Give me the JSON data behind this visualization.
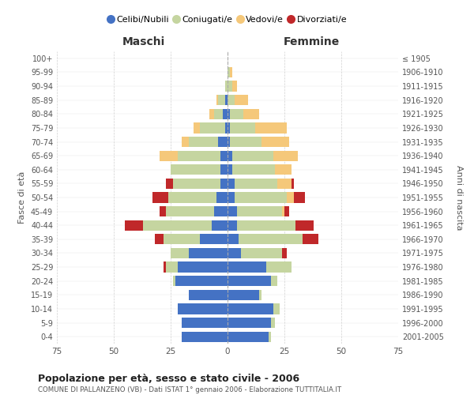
{
  "age_groups": [
    "0-4",
    "5-9",
    "10-14",
    "15-19",
    "20-24",
    "25-29",
    "30-34",
    "35-39",
    "40-44",
    "45-49",
    "50-54",
    "55-59",
    "60-64",
    "65-69",
    "70-74",
    "75-79",
    "80-84",
    "85-89",
    "90-94",
    "95-99",
    "100+"
  ],
  "birth_years": [
    "2001-2005",
    "1996-2000",
    "1991-1995",
    "1986-1990",
    "1981-1985",
    "1976-1980",
    "1971-1975",
    "1966-1970",
    "1961-1965",
    "1956-1960",
    "1951-1955",
    "1946-1950",
    "1941-1945",
    "1936-1940",
    "1931-1935",
    "1926-1930",
    "1921-1925",
    "1916-1920",
    "1911-1915",
    "1906-1910",
    "≤ 1905"
  ],
  "males": {
    "celibi": [
      20,
      20,
      22,
      17,
      23,
      22,
      17,
      12,
      7,
      6,
      5,
      3,
      3,
      3,
      4,
      1,
      2,
      1,
      0,
      0,
      0
    ],
    "coniugati": [
      0,
      0,
      0,
      0,
      1,
      5,
      8,
      16,
      30,
      21,
      21,
      21,
      22,
      19,
      13,
      11,
      4,
      3,
      1,
      0,
      0
    ],
    "vedovi": [
      0,
      0,
      0,
      0,
      0,
      0,
      0,
      0,
      0,
      0,
      0,
      0,
      0,
      8,
      3,
      3,
      2,
      1,
      0,
      0,
      0
    ],
    "divorziati": [
      0,
      0,
      0,
      0,
      0,
      1,
      0,
      4,
      8,
      3,
      7,
      3,
      0,
      0,
      0,
      0,
      0,
      0,
      0,
      0,
      0
    ]
  },
  "females": {
    "nubili": [
      18,
      19,
      20,
      14,
      19,
      17,
      6,
      5,
      4,
      4,
      3,
      3,
      2,
      2,
      1,
      1,
      1,
      0,
      0,
      0,
      0
    ],
    "coniugate": [
      1,
      2,
      3,
      1,
      3,
      11,
      18,
      28,
      26,
      20,
      23,
      19,
      19,
      18,
      14,
      11,
      6,
      3,
      2,
      1,
      0
    ],
    "vedove": [
      0,
      0,
      0,
      0,
      0,
      0,
      0,
      0,
      0,
      1,
      3,
      6,
      7,
      11,
      12,
      14,
      7,
      6,
      2,
      1,
      0
    ],
    "divorziate": [
      0,
      0,
      0,
      0,
      0,
      0,
      2,
      7,
      8,
      2,
      5,
      1,
      0,
      0,
      0,
      0,
      0,
      0,
      0,
      0,
      0
    ]
  },
  "colors": {
    "celibi_nubili": "#4472C4",
    "coniugati": "#C5D5A0",
    "vedovi": "#F5C87A",
    "divorziati": "#C0282A"
  },
  "xlim": 75,
  "title": "Popolazione per età, sesso e stato civile - 2006",
  "subtitle": "COMUNE DI PALLANZENO (VB) - Dati ISTAT 1° gennaio 2006 - Elaborazione TUTTITALIA.IT",
  "ylabel_left": "Fasce di età",
  "ylabel_right": "Anni di nascita",
  "xlabel_left": "Maschi",
  "xlabel_right": "Femmine",
  "legend_labels": [
    "Celibi/Nubili",
    "Coniugati/e",
    "Vedovi/e",
    "Divorziati/e"
  ],
  "bg_color": "#FFFFFF",
  "grid_color": "#CCCCCC"
}
